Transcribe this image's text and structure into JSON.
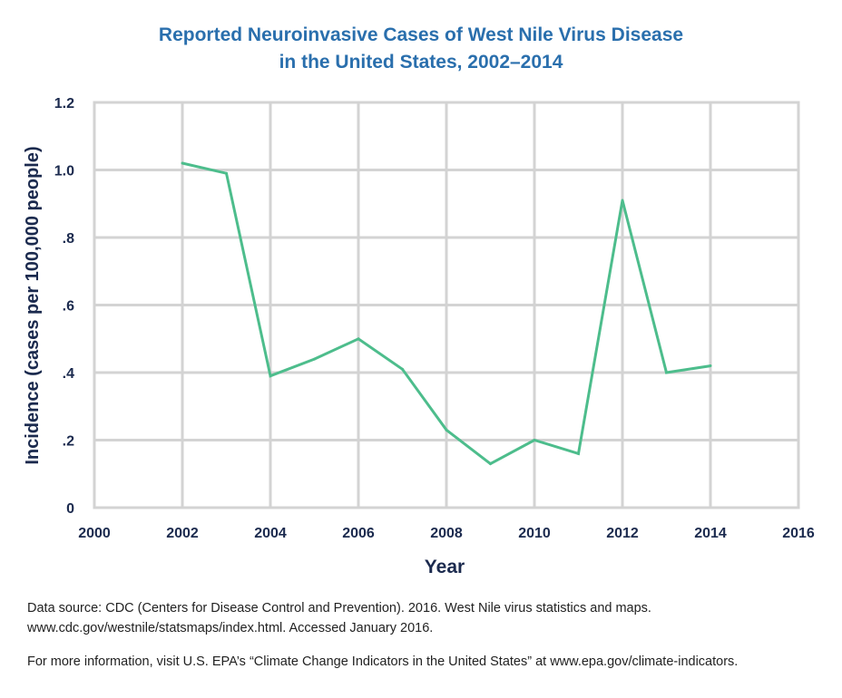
{
  "title_line1": "Reported Neuroinvasive Cases of West Nile Virus Disease",
  "title_line2": "in the United States, 2002–2014",
  "colors": {
    "title": "#2a6fad",
    "line": "#4dbd8c",
    "axis_text": "#1b2a4e",
    "grid": "#d3d3d3",
    "plot_bg": "#ffffff"
  },
  "chart_data": {
    "type": "line",
    "xlabel": "Year",
    "ylabel": "Incidence (cases per 100,000 people)",
    "xlim": [
      2000,
      2016
    ],
    "ylim": [
      0,
      1.2
    ],
    "xticks": [
      2000,
      2002,
      2004,
      2006,
      2008,
      2010,
      2012,
      2014,
      2016
    ],
    "xtick_labels": [
      "2000",
      "2002",
      "2004",
      "2006",
      "2008",
      "2010",
      "2012",
      "2014",
      "2016"
    ],
    "yticks": [
      0,
      0.2,
      0.4,
      0.6,
      0.8,
      1.0,
      1.2
    ],
    "ytick_labels": [
      "0",
      ".2",
      ".4",
      ".6",
      ".8",
      "1.0",
      "1.2"
    ],
    "grid": true,
    "series": [
      {
        "x": [
          2002,
          2003,
          2004,
          2005,
          2006,
          2007,
          2008,
          2009,
          2010,
          2011,
          2012,
          2013,
          2014
        ],
        "values": [
          1.02,
          0.99,
          0.39,
          0.44,
          0.5,
          0.41,
          0.23,
          0.13,
          0.2,
          0.16,
          0.91,
          0.4,
          0.42
        ]
      }
    ]
  },
  "notes": {
    "source_line1": "Data source: CDC (Centers for Disease Control and Prevention). 2016. West Nile virus statistics and maps.",
    "source_line2": "www.cdc.gov/westnile/statsmaps/index.html. Accessed January 2016.",
    "more_info": "For more information, visit U.S. EPA’s “Climate Change Indicators in the United States” at www.epa.gov/climate-indicators."
  }
}
